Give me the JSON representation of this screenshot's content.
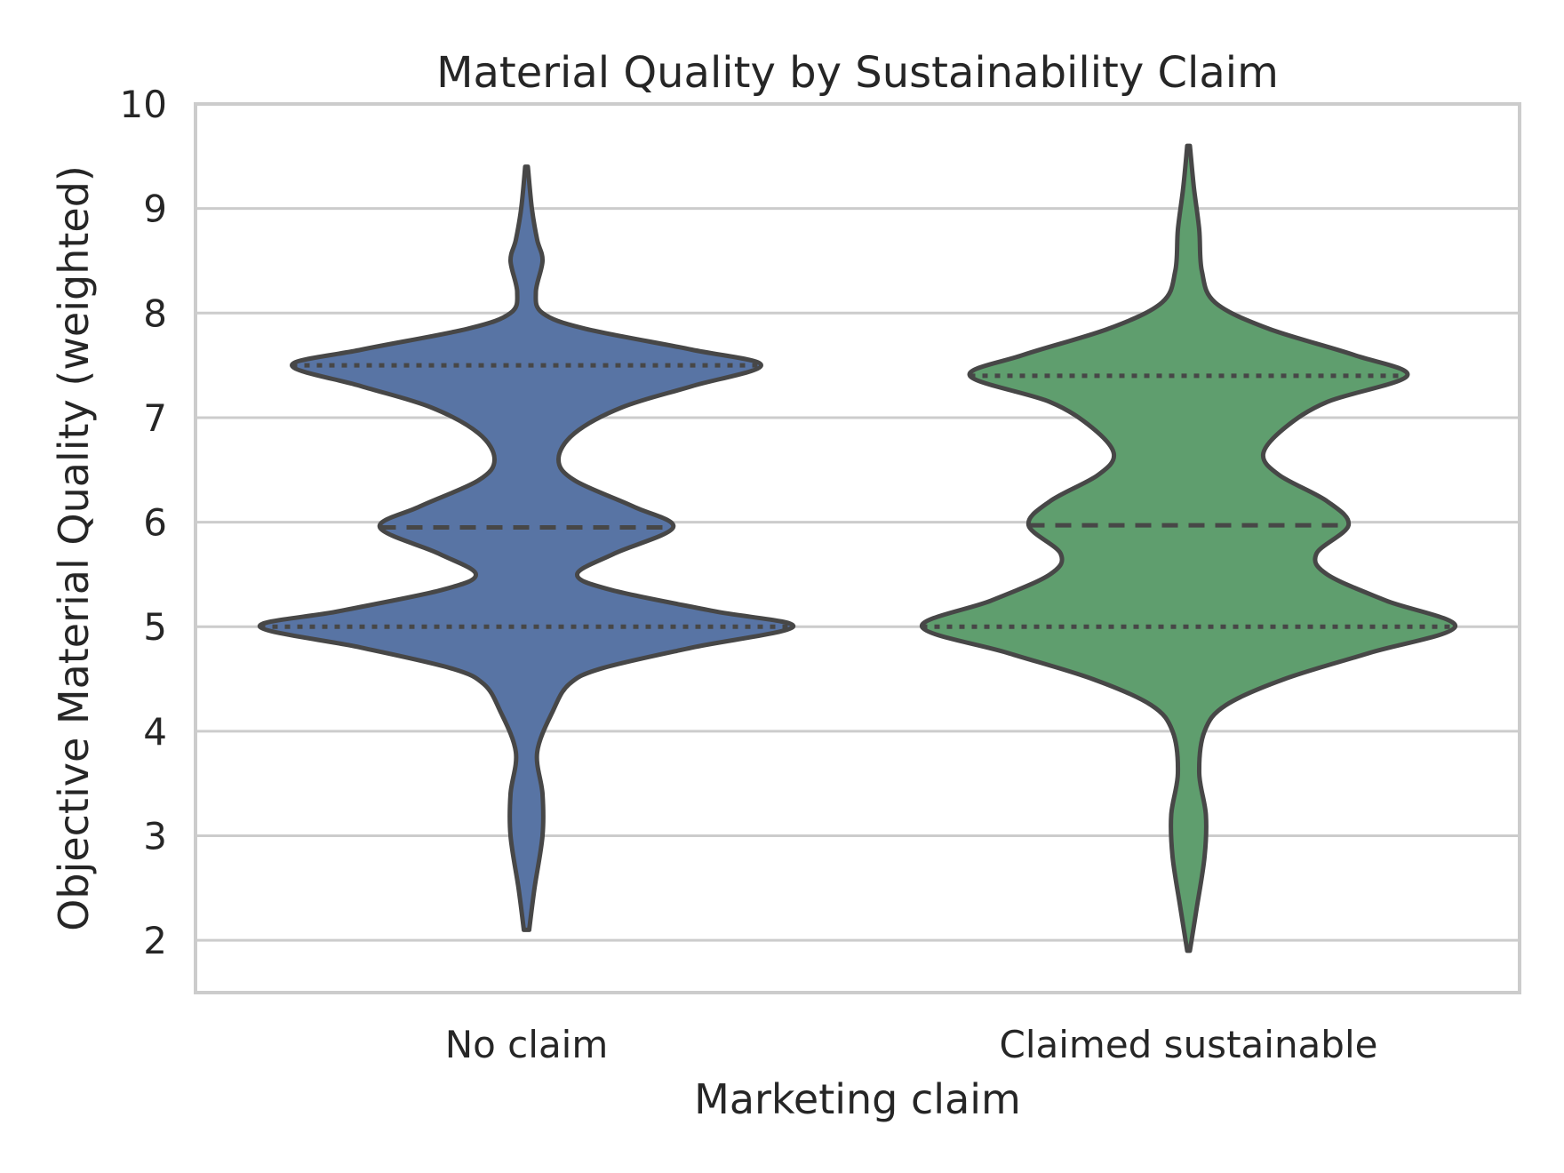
{
  "chart_data": {
    "type": "violin",
    "title": "Material Quality by Sustainability Claim",
    "xlabel": "Marketing claim",
    "ylabel": "Objective Material Quality (weighted)",
    "ylim": [
      1.5,
      10
    ],
    "yticks": [
      2,
      3,
      4,
      5,
      6,
      7,
      8,
      9,
      10
    ],
    "grid": "horizontal",
    "categories": [
      "No claim",
      "Claimed sustainable"
    ],
    "series": [
      {
        "category": "No claim",
        "color": "#5874a4",
        "min": 2.1,
        "max": 9.4,
        "q1": 5.0,
        "median": 5.95,
        "q3": 7.5,
        "density": [
          [
            2.1,
            0.01
          ],
          [
            2.5,
            0.03
          ],
          [
            3.0,
            0.06
          ],
          [
            3.4,
            0.06
          ],
          [
            3.8,
            0.04
          ],
          [
            4.2,
            0.1
          ],
          [
            4.45,
            0.16
          ],
          [
            4.6,
            0.28
          ],
          [
            4.8,
            0.62
          ],
          [
            5.0,
            1.0
          ],
          [
            5.15,
            0.7
          ],
          [
            5.35,
            0.32
          ],
          [
            5.5,
            0.19
          ],
          [
            5.7,
            0.33
          ],
          [
            5.95,
            0.55
          ],
          [
            6.15,
            0.4
          ],
          [
            6.4,
            0.18
          ],
          [
            6.6,
            0.12
          ],
          [
            6.85,
            0.18
          ],
          [
            7.1,
            0.36
          ],
          [
            7.3,
            0.62
          ],
          [
            7.5,
            0.88
          ],
          [
            7.65,
            0.62
          ],
          [
            7.85,
            0.22
          ],
          [
            8.0,
            0.06
          ],
          [
            8.2,
            0.035
          ],
          [
            8.5,
            0.06
          ],
          [
            8.7,
            0.04
          ],
          [
            9.0,
            0.02
          ],
          [
            9.4,
            0.005
          ]
        ]
      },
      {
        "category": "Claimed sustainable",
        "color": "#5f9e6e",
        "min": 1.9,
        "max": 9.6,
        "q1": 5.0,
        "median": 5.97,
        "q3": 7.4,
        "density": [
          [
            1.9,
            0.005
          ],
          [
            2.3,
            0.03
          ],
          [
            2.8,
            0.06
          ],
          [
            3.2,
            0.065
          ],
          [
            3.6,
            0.04
          ],
          [
            4.0,
            0.06
          ],
          [
            4.25,
            0.14
          ],
          [
            4.5,
            0.36
          ],
          [
            4.75,
            0.68
          ],
          [
            5.0,
            1.0
          ],
          [
            5.25,
            0.74
          ],
          [
            5.5,
            0.52
          ],
          [
            5.7,
            0.48
          ],
          [
            5.97,
            0.6
          ],
          [
            6.2,
            0.52
          ],
          [
            6.45,
            0.34
          ],
          [
            6.65,
            0.28
          ],
          [
            6.9,
            0.36
          ],
          [
            7.15,
            0.52
          ],
          [
            7.4,
            0.82
          ],
          [
            7.6,
            0.62
          ],
          [
            7.85,
            0.3
          ],
          [
            8.1,
            0.1
          ],
          [
            8.4,
            0.05
          ],
          [
            8.8,
            0.04
          ],
          [
            9.2,
            0.02
          ],
          [
            9.6,
            0.005
          ]
        ]
      }
    ]
  }
}
